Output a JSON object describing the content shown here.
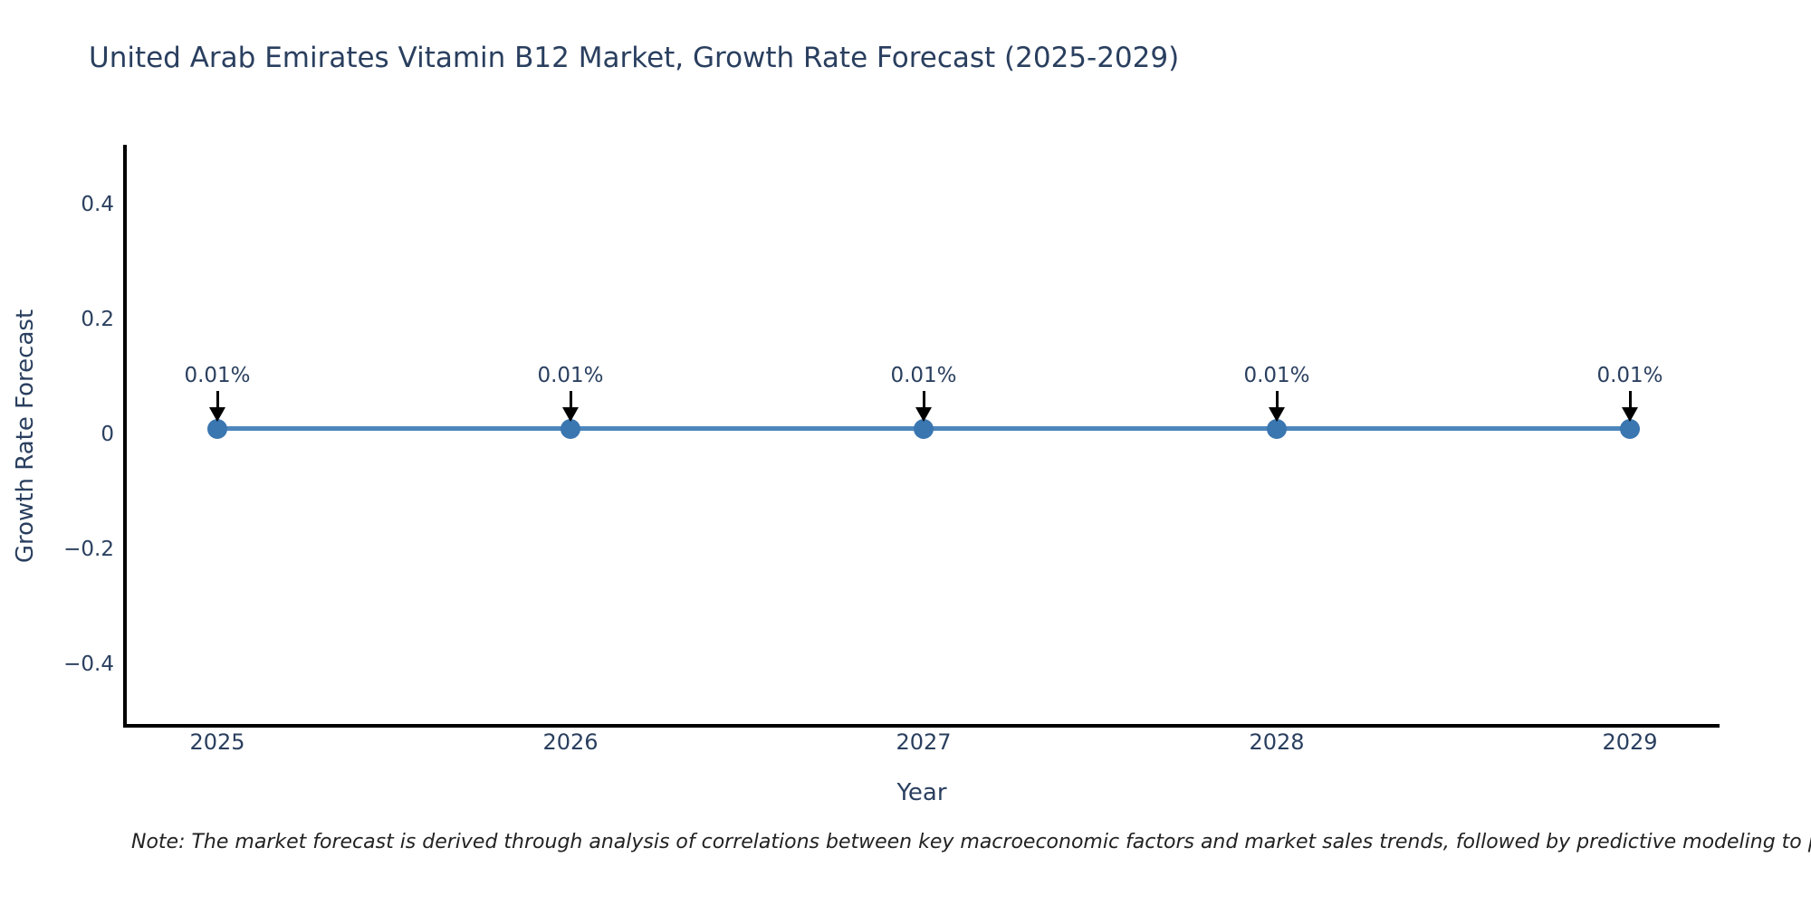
{
  "title": {
    "text": "United Arab Emirates Vitamin B12 Market, Growth Rate Forecast (2025-2029)",
    "color": "#2a3f5f"
  },
  "note": {
    "text": "Note: The market forecast is derived through analysis of correlations between key macroeconomic factors and market sales trends, followed by predictive modeling to project future sales."
  },
  "chart_data": {
    "type": "line",
    "title": "United Arab Emirates Vitamin B12 Market, Growth Rate Forecast (2025-2029)",
    "xlabel": "Year",
    "ylabel": "Growth Rate Forecast",
    "x": [
      2025,
      2026,
      2027,
      2028,
      2029
    ],
    "x_tick_labels": [
      "2025",
      "2026",
      "2027",
      "2028",
      "2029"
    ],
    "series": [
      {
        "name": "Growth Rate Forecast",
        "values": [
          0.01,
          0.01,
          0.01,
          0.01,
          0.01
        ],
        "unit": "%"
      }
    ],
    "point_labels": [
      "0.01%",
      "0.01%",
      "0.01%",
      "0.01%",
      "0.01%"
    ],
    "y_ticks": [
      {
        "label": "0.4",
        "value": 0.4
      },
      {
        "label": "0.2",
        "value": 0.2
      },
      {
        "label": "0",
        "value": 0
      },
      {
        "label": "−0.2",
        "value": -0.2
      },
      {
        "label": "−0.4",
        "value": -0.4
      }
    ],
    "ylim": [
      -0.5,
      0.5
    ],
    "grid": false,
    "legend": "none",
    "colors": {
      "line": "#4D86BD",
      "marker": "#3A76B0",
      "axis": "#000000",
      "text": "#2a3f5f",
      "arrow": "#000000",
      "note": "#222222"
    }
  }
}
